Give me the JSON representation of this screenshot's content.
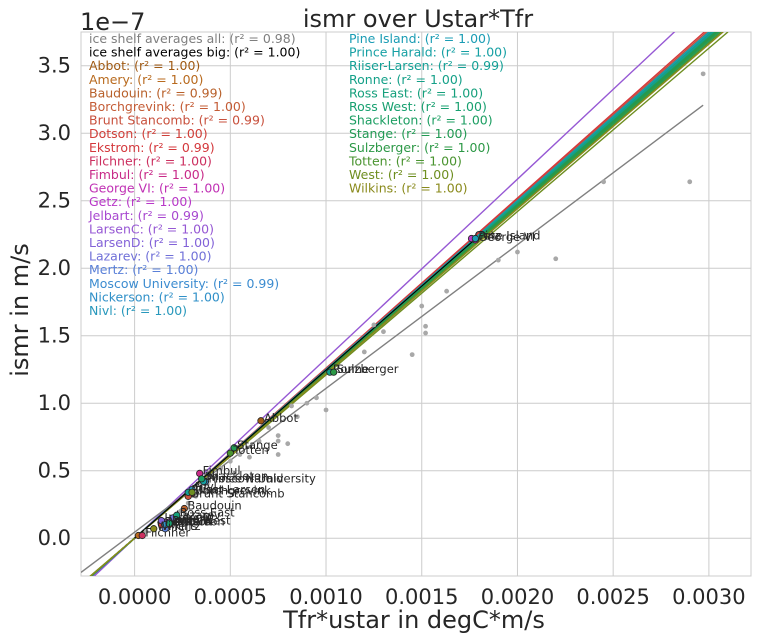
{
  "chart_data": {
    "type": "scatter",
    "title": "ismr over Ustar*Tfr",
    "xlabel": "Tfr*ustar in degC*m/s",
    "ylabel": "ismr in m/s",
    "y_offset_label": "1e−7",
    "xlim": [
      -0.00028,
      0.00322
    ],
    "ylim": [
      -0.28,
      3.75
    ],
    "x_ticks": [
      "0.0000",
      "0.0005",
      "0.0010",
      "0.0015",
      "0.0020",
      "0.0025",
      "0.0030"
    ],
    "x_tick_values": [
      0,
      0.0005,
      0.001,
      0.0015,
      0.002,
      0.0025,
      0.003
    ],
    "y_ticks": [
      "0.0",
      "0.5",
      "1.0",
      "1.5",
      "2.0",
      "2.5",
      "3.0",
      "3.5"
    ],
    "y_tick_values": [
      0,
      0.5,
      1.0,
      1.5,
      2.0,
      2.5,
      3.0,
      3.5
    ],
    "grid": true,
    "legend_all": [
      {
        "label": "ice shelf averages all: (r² = 0.98)",
        "color": "#7f7f7f"
      },
      {
        "label": "ice shelf averages big: (r² = 1.00)",
        "color": "#000000"
      }
    ],
    "series": [
      {
        "name": "Abbot: (r² = 1.00)",
        "color": "#a05a14",
        "x": 0.00066,
        "y": 0.87,
        "slope": 1250,
        "annotation": "Abbot"
      },
      {
        "name": "Amery: (r² = 1.00)",
        "color": "#b86a1e",
        "x": 2e-05,
        "y": 0.02,
        "slope": 1245,
        "annotation": ""
      },
      {
        "name": "Baudouin: (r² = 0.99)",
        "color": "#b8602a",
        "x": 0.00026,
        "y": 0.22,
        "slope": 1235,
        "annotation": "Baudouin"
      },
      {
        "name": "Borchgrevink: (r² = 1.00)",
        "color": "#c45c36",
        "x": 0.0003,
        "y": 0.33,
        "slope": 1240,
        "annotation": "Borchgrevink"
      },
      {
        "name": "Brunt Stancomb: (r² = 0.99)",
        "color": "#c8503c",
        "x": 0.00028,
        "y": 0.31,
        "slope": 1255,
        "annotation": "Brunt Stancomb"
      },
      {
        "name": "Dotson: (r² = 1.00)",
        "color": "#d0403a",
        "x": 0.00018,
        "y": 0.1,
        "slope": 1240,
        "annotation": "Dotson"
      },
      {
        "name": "Ekstrom: (r² = 0.99)",
        "color": "#d4383c",
        "x": 0.00014,
        "y": 0.1,
        "slope": 1260,
        "annotation": "Ekstrom"
      },
      {
        "name": "Filchner: (r² = 1.00)",
        "color": "#cc3060",
        "x": 4e-05,
        "y": 0.02,
        "slope": 1235,
        "annotation": "Filchner"
      },
      {
        "name": "Fimbul: (r² = 1.00)",
        "color": "#c82a88",
        "x": 0.00034,
        "y": 0.48,
        "slope": 1250,
        "annotation": "Fimbul"
      },
      {
        "name": "George VI: (r² = 1.00)",
        "color": "#c030b4",
        "x": 0.00178,
        "y": 2.21,
        "slope": 1238,
        "annotation": "George VI"
      },
      {
        "name": "Getz: (r² = 1.00)",
        "color": "#b838c8",
        "x": 0.00176,
        "y": 2.22,
        "slope": 1242,
        "annotation": "Getz"
      },
      {
        "name": "Jelbart: (r² = 0.99)",
        "color": "#a848d0",
        "x": 0.00018,
        "y": 0.12,
        "slope": 1245,
        "annotation": "Jelbart"
      },
      {
        "name": "LarsenC: (r² = 1.00)",
        "color": "#9658d4",
        "x": 0.00016,
        "y": 0.12,
        "slope": 1330,
        "annotation": "LarsenC"
      },
      {
        "name": "LarsenD: (r² = 1.00)",
        "color": "#8262d8",
        "x": 0.00014,
        "y": 0.13,
        "slope": 1248,
        "annotation": "LarsenD"
      },
      {
        "name": "Lazarev: (r² = 1.00)",
        "color": "#7070d8",
        "x": 0.0002,
        "y": 0.15,
        "slope": 1240,
        "annotation": "Lazarev"
      },
      {
        "name": "Mertz: (r² = 1.00)",
        "color": "#5a80d8",
        "x": 0.00016,
        "y": 0.07,
        "slope": 1242,
        "annotation": "Mertz"
      },
      {
        "name": "Moscow University: (r² = 0.99)",
        "color": "#3c8cd0",
        "x": 0.00037,
        "y": 0.42,
        "slope": 1245,
        "annotation": "Moscow University"
      },
      {
        "name": "Nickerson: (r² = 1.00)",
        "color": "#3090c8",
        "x": 0.00016,
        "y": 0.1,
        "slope": 1238,
        "annotation": "Nickerson"
      },
      {
        "name": "Nivl: (r² = 1.00)",
        "color": "#2898bc",
        "x": 0.0003,
        "y": 0.36,
        "slope": 1250,
        "annotation": "Nivl"
      },
      {
        "name": "Pine Island: (r² = 1.00)",
        "color": "#1a9cb4",
        "x": 0.00178,
        "y": 2.22,
        "slope": 1245,
        "annotation": "Pine Island"
      },
      {
        "name": "Prince Harald: (r² = 1.00)",
        "color": "#16a0a4",
        "x": 0.00036,
        "y": 0.42,
        "slope": 1250,
        "annotation": "Prince Harald"
      },
      {
        "name": "Riiser-Larsen: (r² = 0.99)",
        "color": "#14a096",
        "x": 0.00028,
        "y": 0.34,
        "slope": 1240,
        "annotation": "Riiser-Larsen"
      },
      {
        "name": "Ronne: (r² = 1.00)",
        "color": "#14a088",
        "x": 0.00102,
        "y": 1.23,
        "slope": 1244,
        "annotation": "Ronne"
      },
      {
        "name": "Ross East: (r² = 1.00)",
        "color": "#16a07c",
        "x": 0.00022,
        "y": 0.17,
        "slope": 1238,
        "annotation": "Ross East"
      },
      {
        "name": "Ross West: (r² = 1.00)",
        "color": "#18a070",
        "x": 0.00018,
        "y": 0.11,
        "slope": 1232,
        "annotation": "Ross West"
      },
      {
        "name": "Shackleton: (r² = 1.00)",
        "color": "#1c9e62",
        "x": 0.00035,
        "y": 0.44,
        "slope": 1228,
        "annotation": "Shackleton"
      },
      {
        "name": "Stange: (r² = 1.00)",
        "color": "#229a54",
        "x": 0.00052,
        "y": 0.67,
        "slope": 1236,
        "annotation": "Stange"
      },
      {
        "name": "Sulzberger: (r² = 1.00)",
        "color": "#2c9846",
        "x": 0.00104,
        "y": 1.23,
        "slope": 1232,
        "annotation": "Sulzberger"
      },
      {
        "name": "Totten: (r² = 1.00)",
        "color": "#4a9430",
        "x": 0.0005,
        "y": 0.63,
        "slope": 1224,
        "annotation": "Totten"
      },
      {
        "name": "West: (r² = 1.00)",
        "color": "#6e8e20",
        "x": 0.0003,
        "y": 0.34,
        "slope": 1210,
        "annotation": "West"
      },
      {
        "name": "Wilkins: (r² = 1.00)",
        "color": "#8a8a1c",
        "x": 0.0001,
        "y": 0.07,
        "slope": 1220,
        "annotation": "Wilkins"
      }
    ],
    "averages_all_points": [
      [
        2e-05,
        0.02
      ],
      [
        6e-05,
        0.05
      ],
      [
        0.0001,
        0.08
      ],
      [
        0.00014,
        0.1
      ],
      [
        0.00018,
        0.13
      ],
      [
        0.0002,
        0.16
      ],
      [
        0.00024,
        0.2
      ],
      [
        0.00028,
        0.26
      ],
      [
        0.00032,
        0.31
      ],
      [
        0.00038,
        0.4
      ],
      [
        0.00045,
        0.52
      ],
      [
        0.0005,
        0.57
      ],
      [
        0.00055,
        0.62
      ],
      [
        0.0006,
        0.6
      ],
      [
        0.00065,
        0.72
      ],
      [
        0.0007,
        0.82
      ],
      [
        0.00075,
        0.62
      ],
      [
        0.00075,
        0.72
      ],
      [
        0.00075,
        0.76
      ],
      [
        0.0008,
        0.7
      ],
      [
        0.00082,
        0.98
      ],
      [
        0.00085,
        0.9
      ],
      [
        0.0009,
        1.0
      ],
      [
        0.00095,
        1.04
      ],
      [
        0.001,
        0.95
      ],
      [
        0.0012,
        1.38
      ],
      [
        0.00125,
        1.58
      ],
      [
        0.0013,
        1.53
      ],
      [
        0.00145,
        1.36
      ],
      [
        0.0015,
        1.72
      ],
      [
        0.00152,
        1.52
      ],
      [
        0.00152,
        1.57
      ],
      [
        0.00163,
        1.83
      ],
      [
        0.0019,
        2.06
      ],
      [
        0.002,
        2.12
      ],
      [
        0.0022,
        2.07
      ],
      [
        0.00245,
        2.64
      ],
      [
        0.0029,
        2.64
      ],
      [
        0.00297,
        3.44
      ]
    ],
    "fit_all": {
      "slope": 1065,
      "intercept": 0.045,
      "x_range": [
        -0.00028,
        0.00297
      ],
      "color": "#808080"
    },
    "fit_big": {
      "slope": 1245,
      "intercept": 0.0,
      "x_range": [
        0.0,
        0.00178
      ],
      "color": "#000000"
    }
  }
}
